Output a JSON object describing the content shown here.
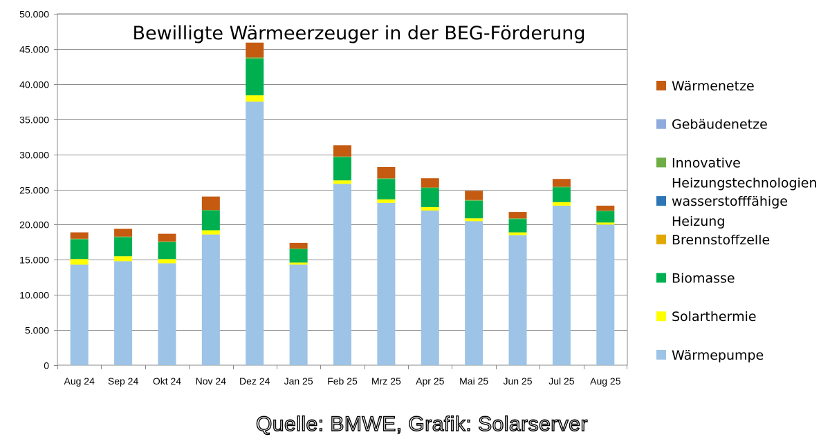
{
  "chart_data": {
    "type": "bar",
    "stacked": true,
    "title": "Bewilligte Wärmeerzeuger in der BEG-Förderung",
    "xlabel": "",
    "ylabel": "",
    "ylim": [
      0,
      50000
    ],
    "yticks": [
      0,
      5000,
      10000,
      15000,
      20000,
      25000,
      30000,
      35000,
      40000,
      45000,
      50000
    ],
    "ytick_labels": [
      "0",
      "5.000",
      "10.000",
      "15.000",
      "20.000",
      "25.000",
      "30.000",
      "35.000",
      "40.000",
      "45.000",
      "50.000"
    ],
    "grid": true,
    "legend_position": "right",
    "categories": [
      "Aug 24",
      "Sep 24",
      "Okt 24",
      "Nov 24",
      "Dez 24",
      "Jan 25",
      "Feb 25",
      "Mrz 25",
      "Apr 25",
      "Mai 25",
      "Jun 25",
      "Jul 25",
      "Aug 25"
    ],
    "series": [
      {
        "name": "Wärmepumpe",
        "color": "#9dc3e6",
        "values": [
          14300,
          14800,
          14500,
          18600,
          37500,
          14300,
          25800,
          23100,
          22000,
          20500,
          18500,
          22700,
          20000
        ]
      },
      {
        "name": "Solarthermie",
        "color": "#ffff00",
        "values": [
          800,
          700,
          600,
          600,
          900,
          300,
          500,
          500,
          500,
          400,
          400,
          500,
          300
        ]
      },
      {
        "name": "Brennstoffzelle",
        "color": "#e0a800",
        "values": [
          0,
          0,
          0,
          0,
          0,
          0,
          0,
          0,
          0,
          0,
          0,
          0,
          0
        ]
      },
      {
        "name": "Biomasse",
        "color": "#00b050",
        "values": [
          2800,
          2700,
          2400,
          2800,
          5200,
          1900,
          3300,
          2900,
          2700,
          2500,
          1900,
          2100,
          1600
        ]
      },
      {
        "name": "wasserstofffähige Heizung",
        "color": "#2e75b6",
        "values": [
          0,
          0,
          0,
          0,
          0,
          0,
          0,
          0,
          0,
          0,
          0,
          0,
          0
        ]
      },
      {
        "name": "Innovative Heizungstechnologien",
        "color": "#70ad47",
        "values": [
          100,
          100,
          100,
          100,
          200,
          100,
          100,
          100,
          100,
          100,
          100,
          100,
          100
        ]
      },
      {
        "name": "Gebäudenetze",
        "color": "#8faadc",
        "values": [
          0,
          0,
          0,
          0,
          0,
          0,
          0,
          0,
          0,
          0,
          0,
          0,
          0
        ]
      },
      {
        "name": "Wärmenetze",
        "color": "#c55a11",
        "values": [
          900,
          1100,
          1100,
          1900,
          2100,
          800,
          1600,
          1600,
          1300,
          1300,
          900,
          1100,
          700
        ]
      }
    ],
    "legend": [
      {
        "key": "Wärmenetze",
        "lines": [
          "Wärmenetze"
        ]
      },
      {
        "key": "Gebäudenetze",
        "lines": [
          "Gebäudenetze"
        ]
      },
      {
        "key": "Innovative Heizungstechnologien",
        "lines": [
          "Innovative",
          "Heizungstechnologien"
        ]
      },
      {
        "key": "wasserstofffähige Heizung",
        "lines": [
          "wasserstofffähige",
          "Heizung"
        ]
      },
      {
        "key": "Brennstoffzelle",
        "lines": [
          "Brennstoffzelle"
        ]
      },
      {
        "key": "Biomasse",
        "lines": [
          "Biomasse"
        ]
      },
      {
        "key": "Solarthermie",
        "lines": [
          "Solarthermie"
        ]
      },
      {
        "key": "Wärmepumpe",
        "lines": [
          "Wärmepumpe"
        ]
      }
    ]
  },
  "source": "Quelle: BMWE, Grafik: Solarserver"
}
